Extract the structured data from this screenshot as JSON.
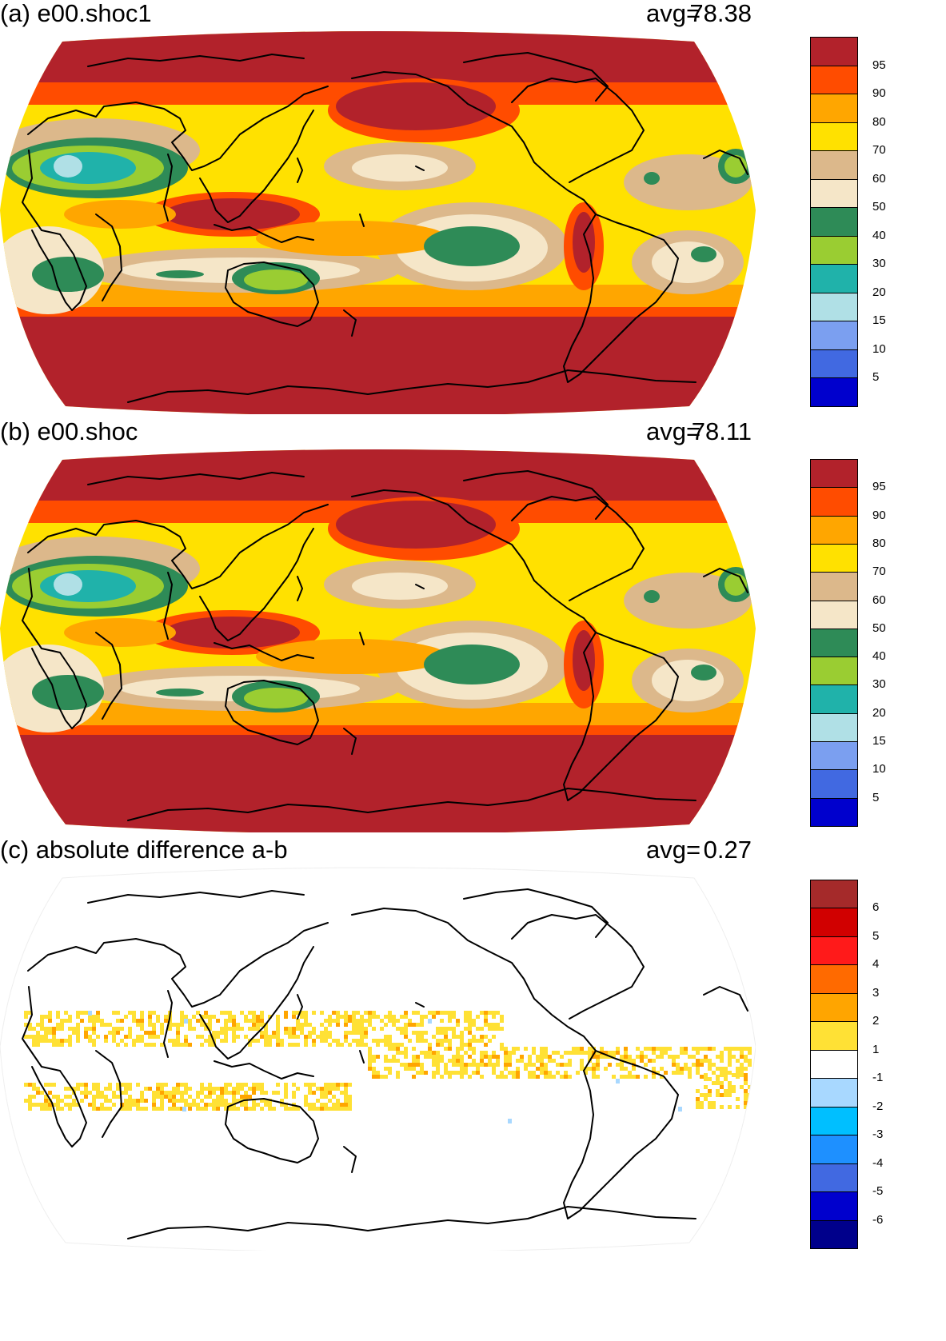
{
  "panels": [
    {
      "id": "a",
      "title": "(a) e00.shoc1",
      "avg_label": "avg=",
      "avg_value": "78.38",
      "palette": "cloud"
    },
    {
      "id": "b",
      "title": "(b) e00.shoc",
      "avg_label": "avg=",
      "avg_value": "78.11",
      "palette": "cloud"
    },
    {
      "id": "c",
      "title": "(c) absolute difference a-b",
      "avg_label": "avg=",
      "avg_value": "0.27",
      "palette": "diff"
    }
  ],
  "colorbars": {
    "cloud": {
      "colors": [
        "#b2222b",
        "#ff4c00",
        "#ffa600",
        "#ffe100",
        "#dcb88b",
        "#f5e6c8",
        "#2e8b57",
        "#9acd32",
        "#20b2aa",
        "#b0e0e6",
        "#7b9ff0",
        "#4169e1",
        "#0000cd"
      ],
      "labels": [
        "95",
        "90",
        "80",
        "70",
        "60",
        "50",
        "40",
        "30",
        "20",
        "15",
        "10",
        "5"
      ]
    },
    "diff": {
      "colors": [
        "#a52a2a",
        "#d10000",
        "#ff1a1a",
        "#ff6a00",
        "#ffa500",
        "#ffe135",
        "#ffffff",
        "#a8d8ff",
        "#00bfff",
        "#1e90ff",
        "#4169e1",
        "#0000cd",
        "#00008b"
      ],
      "labels": [
        "6",
        "5",
        "4",
        "3",
        "2",
        "1",
        "-1",
        "-2",
        "-3",
        "-4",
        "-5",
        "-6"
      ]
    }
  },
  "style": {
    "coast_color": "#000000",
    "map_background_diff": "#ffffff"
  }
}
